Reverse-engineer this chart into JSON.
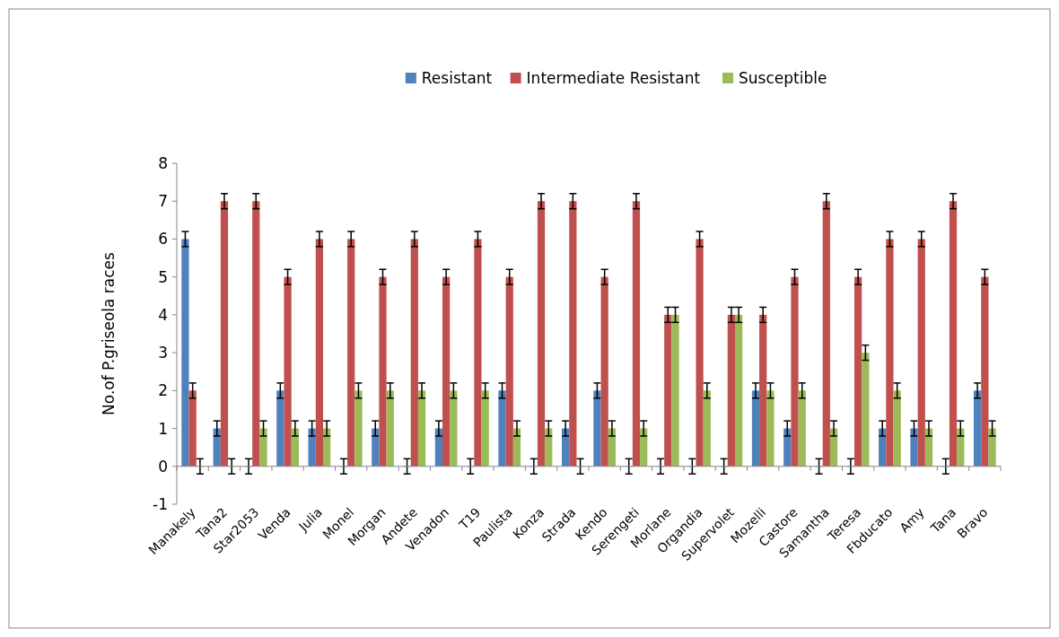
{
  "chart_data": {
    "type": "bar",
    "ylabel": "No.of P.griseola  races",
    "categories": [
      "Manakely",
      "Tana2",
      "Star2053",
      "Venda",
      "Julia",
      "Monel",
      "Morgan",
      "Andete",
      "Venadon",
      "T19",
      "Paulista",
      "Konza",
      "Strada",
      "Kendo",
      "Serengeti",
      "Morlane",
      "Organdia",
      "Supervolet",
      "Mozelli",
      "Castore",
      "Samantha",
      "Teresa",
      "Fbducato",
      "Amy",
      "Tana",
      "Bravo"
    ],
    "series": [
      {
        "name": "Resistant",
        "color": "#4f81bd",
        "values": [
          6,
          1,
          0,
          2,
          1,
          0,
          1,
          0,
          1,
          0,
          2,
          0,
          1,
          2,
          0,
          0,
          0,
          0,
          2,
          1,
          0,
          0,
          1,
          1,
          0,
          2
        ],
        "errors": [
          0.2,
          0.2,
          0.2,
          0.2,
          0.2,
          0.2,
          0.2,
          0.2,
          0.2,
          0.2,
          0.2,
          0.2,
          0.2,
          0.2,
          0.2,
          0.2,
          0.2,
          0.2,
          0.2,
          0.2,
          0.2,
          0.2,
          0.2,
          0.2,
          0.2,
          0.2
        ]
      },
      {
        "name": "Intermediate Resistant",
        "color": "#c0504d",
        "values": [
          2,
          7,
          7,
          5,
          6,
          6,
          5,
          6,
          5,
          6,
          5,
          7,
          7,
          5,
          7,
          4,
          6,
          4,
          4,
          5,
          7,
          5,
          6,
          6,
          7,
          5
        ],
        "errors": [
          0.2,
          0.2,
          0.2,
          0.2,
          0.2,
          0.2,
          0.2,
          0.2,
          0.2,
          0.2,
          0.2,
          0.2,
          0.2,
          0.2,
          0.2,
          0.2,
          0.2,
          0.2,
          0.2,
          0.2,
          0.2,
          0.2,
          0.2,
          0.2,
          0.2,
          0.2
        ]
      },
      {
        "name": "Susceptible",
        "color": "#9bbb59",
        "values": [
          0,
          0,
          1,
          1,
          1,
          2,
          2,
          2,
          2,
          2,
          1,
          1,
          0,
          1,
          1,
          4,
          2,
          4,
          2,
          2,
          1,
          3,
          2,
          1,
          1,
          1
        ],
        "errors": [
          0.2,
          0.2,
          0.2,
          0.2,
          0.2,
          0.2,
          0.2,
          0.2,
          0.2,
          0.2,
          0.2,
          0.2,
          0.2,
          0.2,
          0.2,
          0.2,
          0.2,
          0.2,
          0.2,
          0.2,
          0.2,
          0.2,
          0.2,
          0.2,
          0.2,
          0.2
        ]
      }
    ],
    "ylim": [
      -1,
      8
    ],
    "yticks": [
      -1,
      0,
      1,
      2,
      3,
      4,
      5,
      6,
      7,
      8
    ],
    "legend": "top"
  }
}
